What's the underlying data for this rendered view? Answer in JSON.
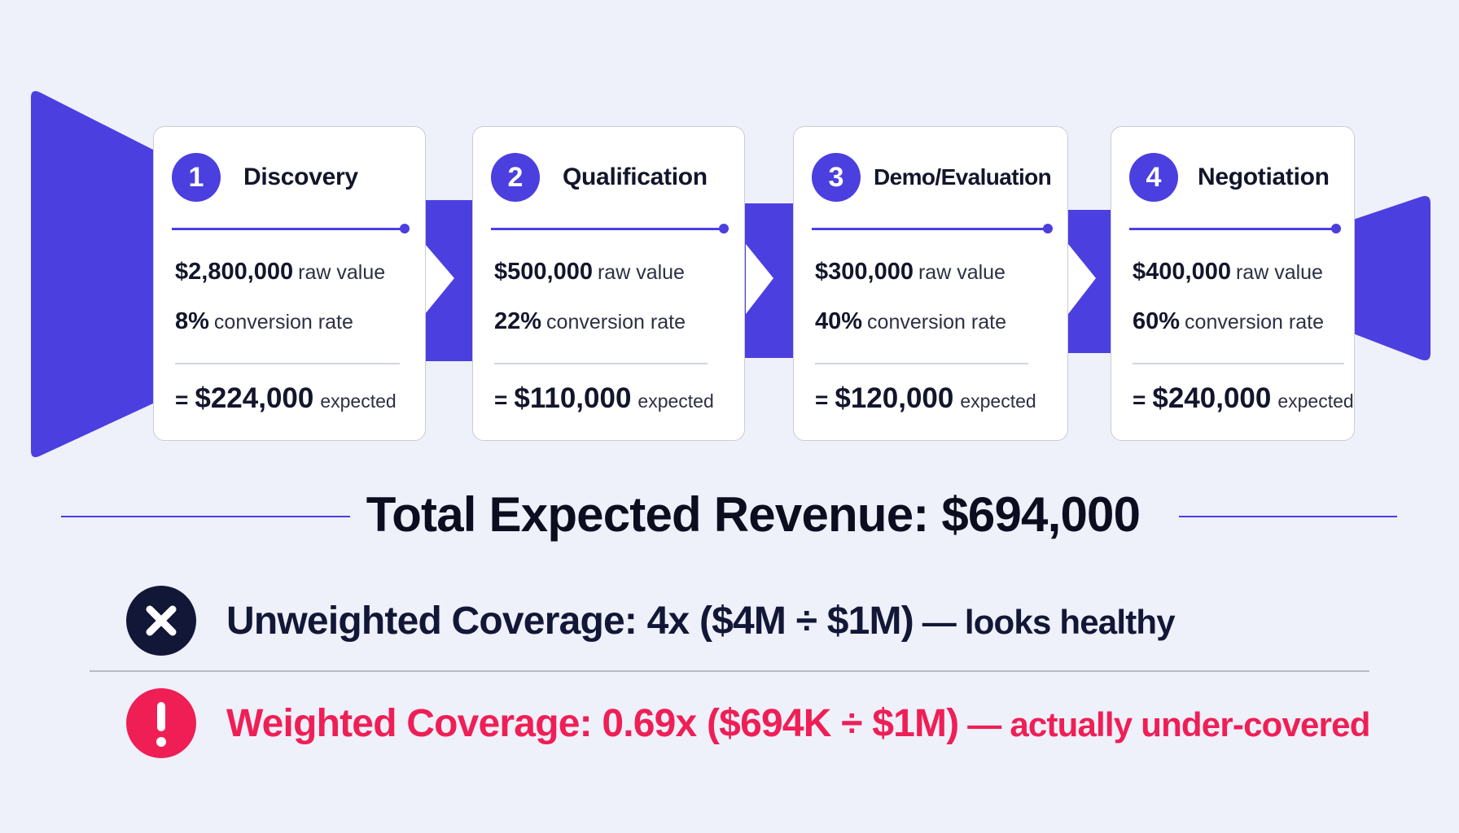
{
  "colors": {
    "accent": "#4b3fe0",
    "alert": "#ef1f56",
    "navy": "#131737",
    "background": "#eef0fa"
  },
  "stages": [
    {
      "num": "1",
      "name": "Discovery",
      "raw_value": "$2,800,000",
      "raw_label": "raw value",
      "conversion": "8%",
      "conversion_label": "conversion rate",
      "eq": "=",
      "expected": "$224,000",
      "expected_label": "expected"
    },
    {
      "num": "2",
      "name": "Qualification",
      "raw_value": "$500,000",
      "raw_label": "raw value",
      "conversion": "22%",
      "conversion_label": "conversion rate",
      "eq": "=",
      "expected": "$110,000",
      "expected_label": "expected"
    },
    {
      "num": "3",
      "name": "Demo/Evaluation",
      "raw_value": "$300,000",
      "raw_label": "raw value",
      "conversion": "40%",
      "conversion_label": "conversion rate",
      "eq": "=",
      "expected": "$120,000",
      "expected_label": "expected"
    },
    {
      "num": "4",
      "name": "Negotiation",
      "raw_value": "$400,000",
      "raw_label": "raw value",
      "conversion": "60%",
      "conversion_label": "conversion rate",
      "eq": "=",
      "expected": "$240,000",
      "expected_label": "expected"
    }
  ],
  "total": {
    "text": "Total Expected Revenue: $694,000"
  },
  "unweighted": {
    "icon": "x-icon",
    "main": "Unweighted Coverage: 4x ($4M ÷ $1M)",
    "suffix": " — looks healthy"
  },
  "weighted": {
    "icon": "exclamation-icon",
    "main": "Weighted Coverage: 0.69x ($694K ÷ $1M)",
    "suffix": " — actually under-covered"
  }
}
